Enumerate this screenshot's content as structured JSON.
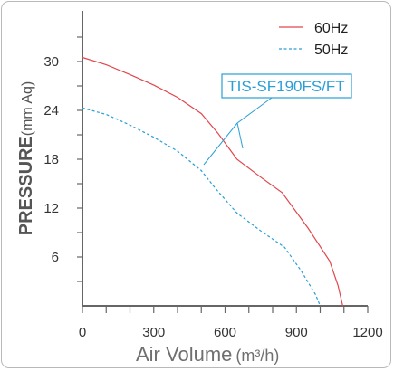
{
  "chart_data": {
    "type": "line",
    "xlabel": "Air Volume",
    "xlabel_unit": "(m³/h)",
    "ylabel": "PRESSURE",
    "ylabel_unit": "(mm Aq)",
    "xlim": [
      0,
      1200
    ],
    "ylim": [
      0,
      36
    ],
    "x_ticks": [
      "0",
      "300",
      "600",
      "900",
      "1200"
    ],
    "y_ticks": [
      "6",
      "12",
      "18",
      "24",
      "30"
    ],
    "grid": false,
    "legend_position": "top-right",
    "annotation": "TIS-SF190FS/FT",
    "series": [
      {
        "name": "60Hz",
        "style": "solid",
        "color": "#e0474c",
        "x": [
          0,
          100,
          200,
          300,
          400,
          500,
          570,
          650,
          750,
          840,
          950,
          1040,
          1075,
          1095
        ],
        "y": [
          30.5,
          29.6,
          28.4,
          27.1,
          25.6,
          23.6,
          21.2,
          18.0,
          15.8,
          13.9,
          9.5,
          5.5,
          2.5,
          0
        ]
      },
      {
        "name": "50Hz",
        "style": "dashed",
        "color": "#2a9fd6",
        "x": [
          0,
          100,
          200,
          300,
          400,
          500,
          560,
          650,
          750,
          850,
          920,
          980,
          1000
        ],
        "y": [
          24.3,
          23.5,
          22.2,
          20.7,
          19.0,
          16.6,
          14.4,
          11.4,
          9.2,
          7.2,
          4.3,
          1.4,
          0
        ]
      }
    ]
  }
}
